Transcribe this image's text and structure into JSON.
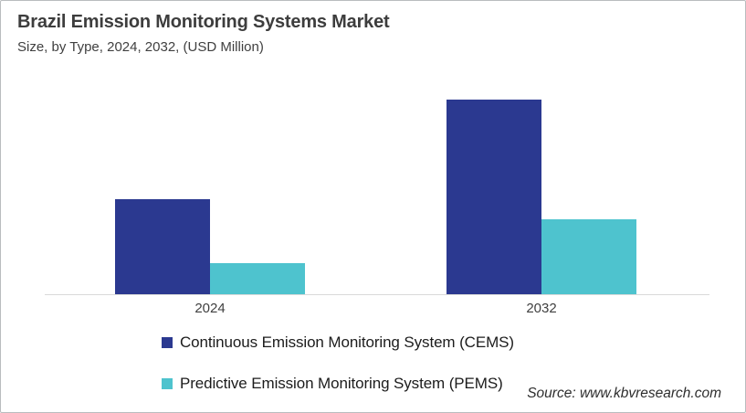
{
  "header": {
    "title": "Brazil Emission Monitoring Systems Market",
    "subtitle": "Size, by Type, 2024, 2032, (USD Million)"
  },
  "chart_data": {
    "type": "bar",
    "title": "Brazil Emission Monitoring Systems Market",
    "subtitle": "Size, by Type, 2024, 2032, (USD Million)",
    "units": "USD Million",
    "categories": [
      "2024",
      "2032"
    ],
    "series": [
      {
        "name": "Continuous Emission Monitoring System (CEMS)",
        "color": "#2B3990",
        "values": [
          104,
          213
        ]
      },
      {
        "name": "Predictive Emission Monitoring System (PEMS)",
        "color": "#4EC3CE",
        "values": [
          34,
          82
        ]
      }
    ],
    "xlabel": "",
    "ylabel": "",
    "ylim": [
      0,
      227
    ],
    "values_are_relative_estimates": true,
    "value_axis_visible": false,
    "value_labels_visible": false,
    "gridlines": false,
    "legend_position": "bottom-left",
    "axis_color": "#D9D9D9"
  },
  "footer": {
    "source": "Source: www.kbvresearch.com"
  }
}
